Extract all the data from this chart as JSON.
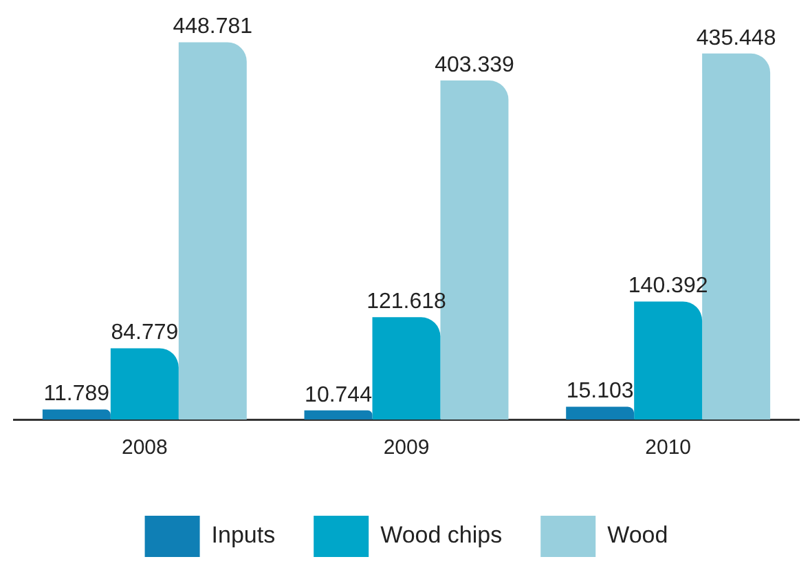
{
  "chart_data": {
    "type": "bar",
    "categories": [
      "2008",
      "2009",
      "2010"
    ],
    "series": [
      {
        "name": "Inputs",
        "color": "#0f7fb5",
        "values": [
          11.789,
          10.744,
          15.103
        ]
      },
      {
        "name": "Wood chips",
        "color": "#00a6c9",
        "values": [
          84.779,
          121.618,
          140.392
        ]
      },
      {
        "name": "Wood",
        "color": "#98cfdd",
        "values": [
          448.781,
          403.339,
          435.448
        ]
      }
    ],
    "data_labels": true,
    "grid": false,
    "legend": "bottom"
  }
}
